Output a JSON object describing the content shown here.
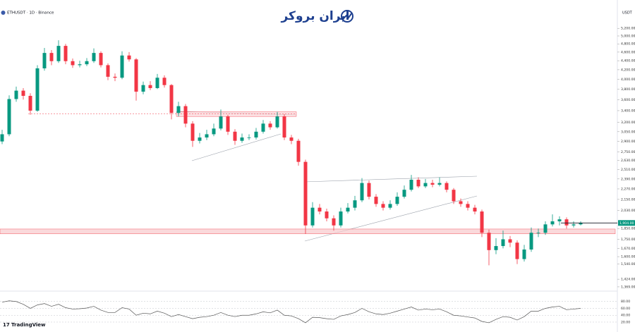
{
  "header": {
    "symbol": "ETHUSDT · 1D · Binance",
    "currency": "USDT",
    "logo_text": "ایران بروکر",
    "brand": "TradingView"
  },
  "chart_data": [
    {
      "type": "candlestick",
      "log_scale": true,
      "up_color": "#089981",
      "down_color": "#f23645",
      "ylim": [
        1344,
        5700
      ],
      "yticks": [
        {
          "value": 5200,
          "label": "5,200.00"
        },
        {
          "value": 5000,
          "label": "5,000.00"
        },
        {
          "value": 4800,
          "label": "4,800.00"
        },
        {
          "value": 4600,
          "label": "4,600.00"
        },
        {
          "value": 4400,
          "label": "4,400.00"
        },
        {
          "value": 4200,
          "label": "4,200.00"
        },
        {
          "value": 4000,
          "label": "4,000.00"
        },
        {
          "value": 3800,
          "label": "3,800.00"
        },
        {
          "value": 3600,
          "label": "3,600.00"
        },
        {
          "value": 3400,
          "label": "3,400.00"
        },
        {
          "value": 3200,
          "label": "3,200.00"
        },
        {
          "value": 3050,
          "label": "3,050.00"
        },
        {
          "value": 2900,
          "label": "2,900.00"
        },
        {
          "value": 2750,
          "label": "2,750.00"
        },
        {
          "value": 2630,
          "label": "2,630.00"
        },
        {
          "value": 2510,
          "label": "2,510.00"
        },
        {
          "value": 2390,
          "label": "2,390.00"
        },
        {
          "value": 2270,
          "label": "2,270.00"
        },
        {
          "value": 2150,
          "label": "2,150.00"
        },
        {
          "value": 2030,
          "label": "2,030.00"
        },
        {
          "value": 1850,
          "label": "1,850.00"
        },
        {
          "value": 1750,
          "label": "1,750.00"
        },
        {
          "value": 1670,
          "label": "1,670.00"
        },
        {
          "value": 1600,
          "label": "1,600.00"
        },
        {
          "value": 1540,
          "label": "1,540.00"
        },
        {
          "value": 1424,
          "label": "1,424.00"
        },
        {
          "value": 1369,
          "label": "1,369.00"
        }
      ],
      "last_price": {
        "value": 1904,
        "label": "1,904.00"
      },
      "zones": [
        {
          "low": 1800,
          "high": 1845,
          "color": "#f8c9cc"
        },
        {
          "low": 3300,
          "high": 3380,
          "color": "#fbd3d6"
        }
      ],
      "levels": [
        {
          "value": 3347,
          "color": "#f23645"
        }
      ],
      "candles": [
        [
          2900,
          3080,
          2860,
          3010
        ],
        [
          3010,
          3680,
          2980,
          3610
        ],
        [
          3610,
          3850,
          3560,
          3770
        ],
        [
          3770,
          3820,
          3600,
          3670
        ],
        [
          3670,
          3720,
          3330,
          3400
        ],
        [
          3400,
          4300,
          3380,
          4230
        ],
        [
          4230,
          4700,
          4180,
          4580
        ],
        [
          4580,
          4650,
          4300,
          4390
        ],
        [
          4390,
          4890,
          4350,
          4750
        ],
        [
          4750,
          4800,
          4320,
          4390
        ],
        [
          4390,
          4450,
          4240,
          4300
        ],
        [
          4300,
          4400,
          4250,
          4320
        ],
        [
          4320,
          4460,
          4280,
          4390
        ],
        [
          4390,
          4690,
          4350,
          4580
        ],
        [
          4580,
          4620,
          4250,
          4300
        ],
        [
          4300,
          4340,
          3980,
          4050
        ],
        [
          4050,
          4120,
          3960,
          4030
        ],
        [
          4030,
          4620,
          4000,
          4520
        ],
        [
          4520,
          4600,
          4380,
          4430
        ],
        [
          4430,
          4460,
          3580,
          3750
        ],
        [
          3750,
          3950,
          3700,
          3880
        ],
        [
          3880,
          3960,
          3780,
          3820
        ],
        [
          3820,
          4110,
          3800,
          4030
        ],
        [
          4030,
          4080,
          3830,
          3880
        ],
        [
          3880,
          3900,
          3250,
          3360
        ],
        [
          3360,
          3560,
          3300,
          3480
        ],
        [
          3480,
          3520,
          3120,
          3180
        ],
        [
          3180,
          3220,
          2820,
          2910
        ],
        [
          2910,
          3030,
          2870,
          2960
        ],
        [
          2960,
          3080,
          2920,
          3010
        ],
        [
          3010,
          3180,
          2980,
          3100
        ],
        [
          3100,
          3420,
          3070,
          3300
        ],
        [
          3300,
          3330,
          3000,
          3050
        ],
        [
          3050,
          3090,
          2850,
          2910
        ],
        [
          2910,
          3020,
          2880,
          2960
        ],
        [
          2960,
          3010,
          2920,
          2960
        ],
        [
          2960,
          3110,
          2930,
          3050
        ],
        [
          3050,
          3240,
          3020,
          3180
        ],
        [
          3180,
          3220,
          3080,
          3120
        ],
        [
          3120,
          3380,
          3100,
          3300
        ],
        [
          3300,
          3340,
          2920,
          2960
        ],
        [
          2960,
          3000,
          2860,
          2910
        ],
        [
          2910,
          2940,
          2560,
          2610
        ],
        [
          2610,
          2640,
          1800,
          1880
        ],
        [
          1880,
          2120,
          1860,
          2060
        ],
        [
          2060,
          2100,
          1990,
          2020
        ],
        [
          2020,
          2050,
          1920,
          1950
        ],
        [
          1950,
          1980,
          1830,
          1880
        ],
        [
          1880,
          2060,
          1860,
          2020
        ],
        [
          2020,
          2110,
          2000,
          2060
        ],
        [
          2060,
          2190,
          2030,
          2140
        ],
        [
          2140,
          2400,
          2120,
          2340
        ],
        [
          2340,
          2370,
          2150,
          2180
        ],
        [
          2180,
          2210,
          2070,
          2100
        ],
        [
          2100,
          2130,
          2030,
          2060
        ],
        [
          2060,
          2140,
          2040,
          2100
        ],
        [
          2100,
          2230,
          2080,
          2180
        ],
        [
          2180,
          2310,
          2160,
          2260
        ],
        [
          2260,
          2440,
          2240,
          2380
        ],
        [
          2380,
          2410,
          2280,
          2300
        ],
        [
          2300,
          2390,
          2280,
          2340
        ],
        [
          2340,
          2380,
          2290,
          2320
        ],
        [
          2320,
          2410,
          2300,
          2340
        ],
        [
          2340,
          2360,
          2230,
          2260
        ],
        [
          2260,
          2280,
          2100,
          2130
        ],
        [
          2130,
          2160,
          2070,
          2100
        ],
        [
          2100,
          2130,
          2030,
          2060
        ],
        [
          2060,
          2090,
          1990,
          2020
        ],
        [
          2020,
          2040,
          1770,
          1810
        ],
        [
          1810,
          1840,
          1530,
          1655
        ],
        [
          1655,
          1760,
          1620,
          1690
        ],
        [
          1690,
          1830,
          1670,
          1750
        ],
        [
          1750,
          1780,
          1680,
          1720
        ],
        [
          1720,
          1740,
          1540,
          1580
        ],
        [
          1580,
          1700,
          1560,
          1660
        ],
        [
          1660,
          1860,
          1640,
          1810
        ],
        [
          1810,
          1850,
          1770,
          1810
        ],
        [
          1810,
          1920,
          1790,
          1890
        ],
        [
          1890,
          1990,
          1870,
          1920
        ],
        [
          1920,
          1970,
          1880,
          1940
        ],
        [
          1940,
          1960,
          1850,
          1880
        ],
        [
          1880,
          1920,
          1860,
          1890
        ],
        [
          1890,
          1920,
          1880,
          1904
        ]
      ]
    },
    {
      "type": "line",
      "color": "#555555",
      "ylim": [
        15,
        100
      ],
      "yticks": [
        {
          "value": 80,
          "label": "80.00"
        },
        {
          "value": 60,
          "label": "60.00"
        },
        {
          "value": 40,
          "label": "40.00"
        },
        {
          "value": 20,
          "label": "20.00"
        }
      ],
      "values": [
        78,
        82,
        80,
        72,
        60,
        70,
        74,
        66,
        72,
        62,
        58,
        59,
        61,
        66,
        55,
        48,
        48,
        62,
        58,
        40,
        46,
        44,
        52,
        46,
        36,
        42,
        36,
        30,
        34,
        36,
        40,
        48,
        40,
        36,
        40,
        40,
        44,
        50,
        47,
        55,
        40,
        38,
        30,
        18,
        34,
        33,
        30,
        28,
        38,
        42,
        48,
        60,
        50,
        44,
        42,
        46,
        52,
        58,
        64,
        55,
        58,
        56,
        58,
        50,
        40,
        38,
        35,
        32,
        22,
        18,
        28,
        36,
        34,
        26,
        36,
        52,
        52,
        60,
        64,
        66,
        56,
        58,
        60
      ]
    }
  ]
}
